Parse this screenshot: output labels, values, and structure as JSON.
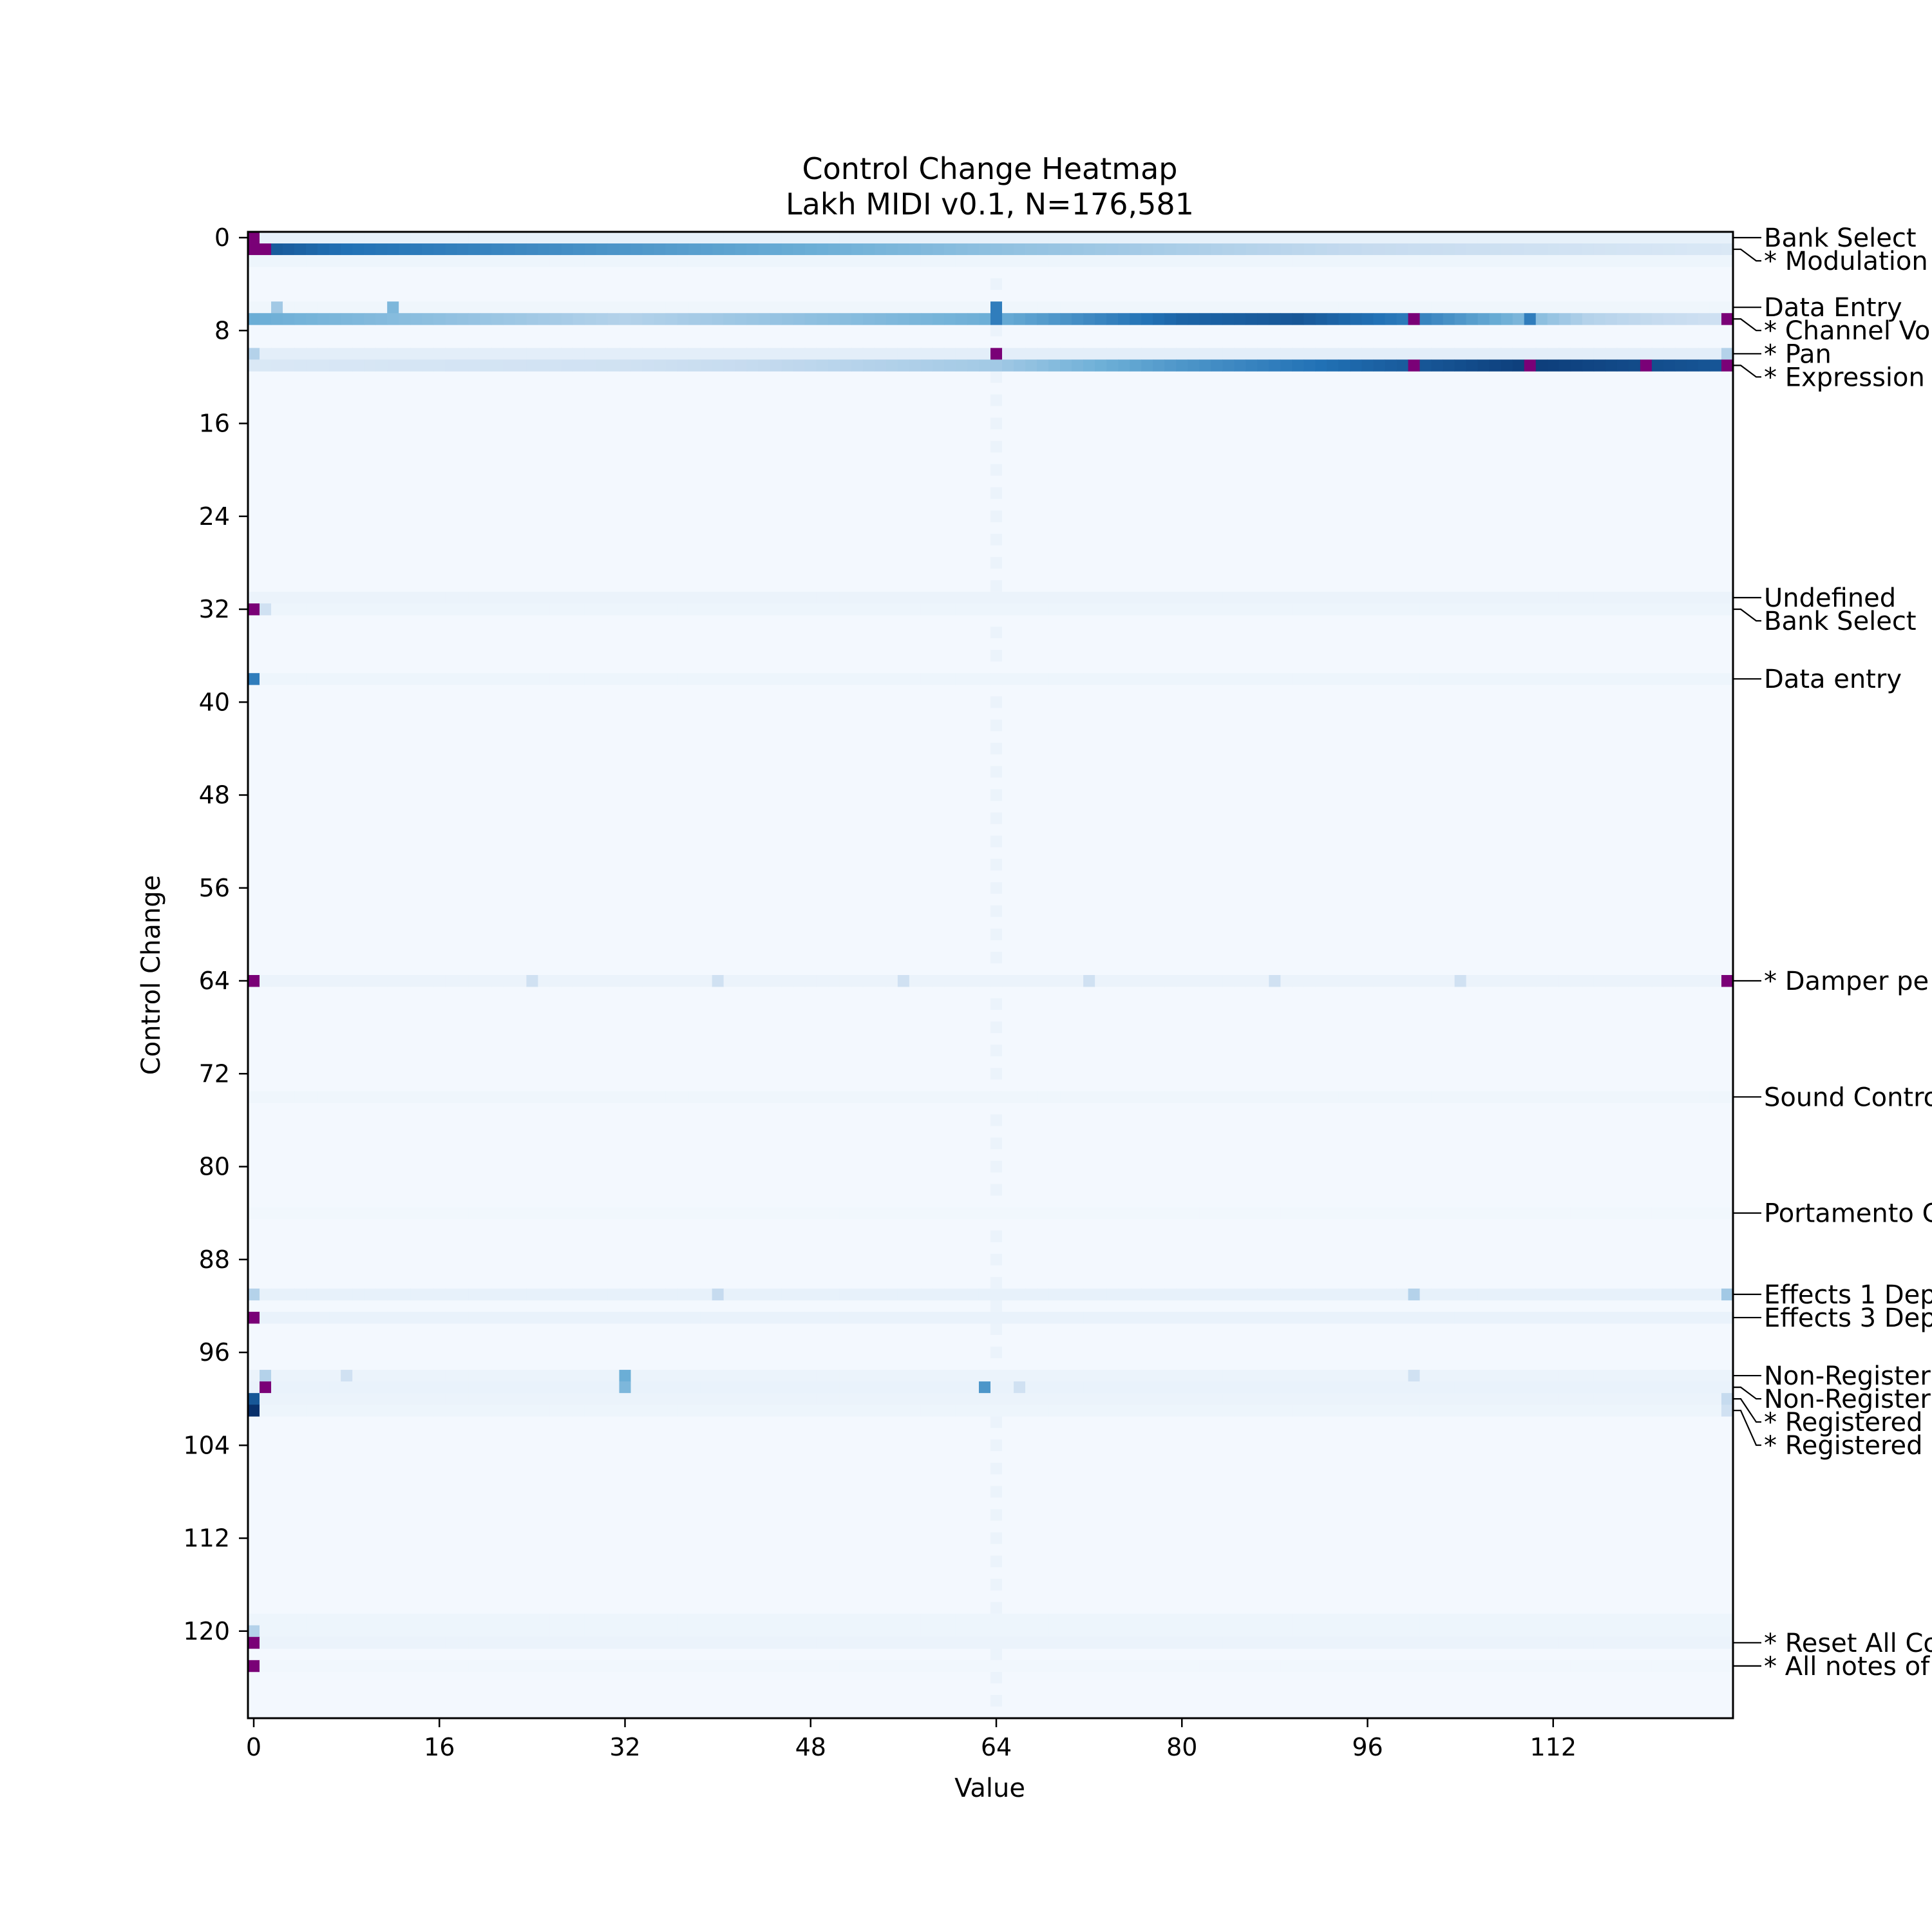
{
  "chart_data": {
    "type": "heatmap",
    "title": "Control Change Heatmap",
    "subtitle": "Lakh MIDI v0.1, N=176,581",
    "xlabel": "Value",
    "ylabel": "Control Change",
    "xlim": [
      0,
      127
    ],
    "ylim": [
      0,
      127
    ],
    "x_ticks": [
      0,
      16,
      32,
      48,
      64,
      80,
      96,
      112
    ],
    "y_ticks": [
      0,
      8,
      16,
      24,
      32,
      40,
      48,
      56,
      64,
      72,
      80,
      88,
      96,
      104,
      112,
      120
    ],
    "x_tick_labels": [
      "0",
      "16",
      "32",
      "48",
      "64",
      "80",
      "96",
      "112"
    ],
    "y_tick_labels": [
      "0",
      "8",
      "16",
      "24",
      "32",
      "40",
      "48",
      "56",
      "64",
      "72",
      "80",
      "88",
      "96",
      "104",
      "112",
      "120"
    ],
    "colormap": "Blues",
    "saturated_color": "#7a0177",
    "row_labels": [
      {
        "cc": 0,
        "label": "Bank Select"
      },
      {
        "cc": 1,
        "label": "* Modulation"
      },
      {
        "cc": 6,
        "label": "Data Entry"
      },
      {
        "cc": 7,
        "label": "* Channel Vo"
      },
      {
        "cc": 10,
        "label": "* Pan"
      },
      {
        "cc": 11,
        "label": "* Expression"
      },
      {
        "cc": 31,
        "label": "Undefined"
      },
      {
        "cc": 32,
        "label": "Bank Select"
      },
      {
        "cc": 38,
        "label": "Data entry"
      },
      {
        "cc": 64,
        "label": "* Damper pe"
      },
      {
        "cc": 74,
        "label": "Sound Contro"
      },
      {
        "cc": 84,
        "label": "Portamento C"
      },
      {
        "cc": 91,
        "label": "Effects 1 Dep"
      },
      {
        "cc": 93,
        "label": "Effects 3 Dep"
      },
      {
        "cc": 98,
        "label": "Non-Register"
      },
      {
        "cc": 99,
        "label": "Non-Register"
      },
      {
        "cc": 100,
        "label": "* Registered"
      },
      {
        "cc": 101,
        "label": "* Registered"
      },
      {
        "cc": 121,
        "label": "* Reset All Co"
      },
      {
        "cc": 123,
        "label": "* All notes of"
      }
    ],
    "rows": [
      {
        "cc": 0,
        "base": 0.08,
        "hot": [
          [
            0,
            1.2
          ]
        ]
      },
      {
        "cc": 1,
        "base": 0.1,
        "gradient": [
          [
            1,
            0.85
          ],
          [
            8,
            0.75
          ],
          [
            32,
            0.6
          ],
          [
            64,
            0.4
          ],
          [
            96,
            0.25
          ],
          [
            127,
            0.15
          ]
        ],
        "hot": [
          [
            0,
            1.2
          ],
          [
            1,
            1.2
          ]
        ]
      },
      {
        "cc": 2,
        "base": 0.05
      },
      {
        "cc": 6,
        "base": 0.04,
        "hot": [
          [
            2,
            0.35
          ],
          [
            12,
            0.45
          ],
          [
            64,
            0.7
          ]
        ]
      },
      {
        "cc": 7,
        "base": 0.22,
        "gradient": [
          [
            0,
            0.5
          ],
          [
            32,
            0.3
          ],
          [
            64,
            0.5
          ],
          [
            80,
            0.8
          ],
          [
            90,
            0.85
          ],
          [
            100,
            0.7
          ],
          [
            115,
            0.3
          ],
          [
            127,
            0.2
          ]
        ],
        "hot": [
          [
            100,
            1.2
          ],
          [
            127,
            1.2
          ],
          [
            110,
            0.7
          ],
          [
            64,
            0.7
          ]
        ]
      },
      {
        "cc": 10,
        "base": 0.1,
        "hot": [
          [
            0,
            0.3
          ],
          [
            64,
            1.2
          ],
          [
            127,
            0.3
          ]
        ]
      },
      {
        "cc": 11,
        "base": 0.12,
        "gradient": [
          [
            0,
            0.15
          ],
          [
            32,
            0.2
          ],
          [
            64,
            0.35
          ],
          [
            80,
            0.6
          ],
          [
            96,
            0.8
          ],
          [
            110,
            0.95
          ],
          [
            127,
            0.85
          ]
        ],
        "hot": [
          [
            100,
            1.2
          ],
          [
            110,
            1.2
          ],
          [
            120,
            1.2
          ],
          [
            127,
            1.2
          ]
        ]
      },
      {
        "cc": 31,
        "base": 0.06
      },
      {
        "cc": 32,
        "base": 0.05,
        "hot": [
          [
            0,
            1.2
          ],
          [
            1,
            0.2
          ]
        ]
      },
      {
        "cc": 38,
        "base": 0.05,
        "hot": [
          [
            0,
            0.7
          ]
        ]
      },
      {
        "cc": 64,
        "base": 0.06,
        "hot": [
          [
            0,
            1.2
          ],
          [
            127,
            1.2
          ],
          [
            24,
            0.2
          ],
          [
            40,
            0.2
          ],
          [
            56,
            0.2
          ],
          [
            72,
            0.2
          ],
          [
            88,
            0.2
          ],
          [
            104,
            0.2
          ]
        ]
      },
      {
        "cc": 74,
        "base": 0.04
      },
      {
        "cc": 84,
        "base": 0.03
      },
      {
        "cc": 91,
        "base": 0.08,
        "hot": [
          [
            0,
            0.3
          ],
          [
            40,
            0.25
          ],
          [
            100,
            0.3
          ],
          [
            127,
            0.35
          ]
        ]
      },
      {
        "cc": 93,
        "base": 0.07,
        "hot": [
          [
            0,
            1.2
          ]
        ]
      },
      {
        "cc": 98,
        "base": 0.06,
        "hot": [
          [
            1,
            0.3
          ],
          [
            32,
            0.5
          ],
          [
            8,
            0.2
          ],
          [
            100,
            0.2
          ]
        ]
      },
      {
        "cc": 99,
        "base": 0.07,
        "hot": [
          [
            1,
            1.2
          ],
          [
            32,
            0.45
          ],
          [
            63,
            0.6
          ],
          [
            66,
            0.2
          ]
        ]
      },
      {
        "cc": 100,
        "base": 0.06,
        "hot": [
          [
            0,
            0.85
          ],
          [
            127,
            0.25
          ]
        ]
      },
      {
        "cc": 101,
        "base": 0.05,
        "hot": [
          [
            0,
            1.0
          ],
          [
            127,
            0.2
          ]
        ]
      },
      {
        "cc": 119,
        "base": 0.05
      },
      {
        "cc": 120,
        "base": 0.05,
        "hot": [
          [
            0,
            0.3
          ]
        ]
      },
      {
        "cc": 121,
        "base": 0.06,
        "hot": [
          [
            0,
            1.2
          ]
        ]
      },
      {
        "cc": 123,
        "base": 0.03,
        "hot": [
          [
            0,
            1.2
          ]
        ]
      }
    ]
  }
}
